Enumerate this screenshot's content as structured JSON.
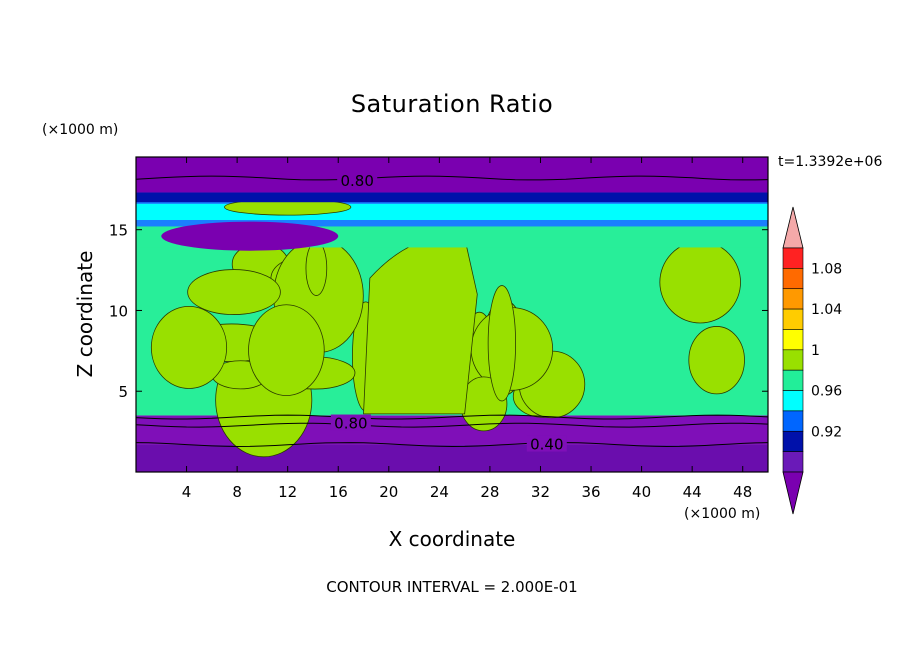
{
  "chart_data": {
    "type": "contour",
    "title": "Saturation Ratio",
    "xlabel": "X coordinate",
    "ylabel": "Z coordinate",
    "x_unit": "(×1000 m)",
    "y_unit": "(×1000 m)",
    "xlim": [
      0,
      50
    ],
    "ylim": [
      0,
      19.5
    ],
    "x_ticks": [
      4,
      8,
      12,
      16,
      20,
      24,
      28,
      32,
      36,
      40,
      44,
      48
    ],
    "y_ticks": [
      5,
      10,
      15
    ],
    "time_label": "t=1.3392e+06",
    "footer": "CONTOUR INTERVAL = 2.000E-01",
    "contour_labels": [
      {
        "text": "0.80",
        "x": 17.5,
        "z": 18.0
      },
      {
        "text": "0.80",
        "x": 17.0,
        "z": 3.0
      },
      {
        "text": "0.40",
        "x": 32.5,
        "z": 1.7
      }
    ],
    "colorbar": {
      "labels": [
        "1.08",
        "1.04",
        "1",
        "0.96",
        "0.92"
      ],
      "colors": [
        "#f4a9a9",
        "#ff2222",
        "#ff6a00",
        "#ff9900",
        "#ffcc00",
        "#ffff00",
        "#99e000",
        "#22ee99",
        "#00ffff",
        "#0066ff",
        "#0011aa",
        "#6a1ab8",
        "#7a00b0"
      ]
    },
    "layers": [
      {
        "z_min": 0.0,
        "z_max": 1.7,
        "level": "< 0.92",
        "color": "#6a0dad"
      },
      {
        "z_min": 1.7,
        "z_max": 3.5,
        "level": "< 0.92",
        "color": "#7f0fb8"
      },
      {
        "z_min": 3.5,
        "z_max": 15.0,
        "level": "0.96 – 1.04",
        "color": "#28ee99"
      },
      {
        "z_min": 15.0,
        "z_max": 17.3,
        "level": "0.92 – 1",
        "color": "#1a7fff"
      },
      {
        "z_min": 17.3,
        "z_max": 19.5,
        "level": "< 0.92",
        "color": "#7a00b0"
      }
    ]
  }
}
